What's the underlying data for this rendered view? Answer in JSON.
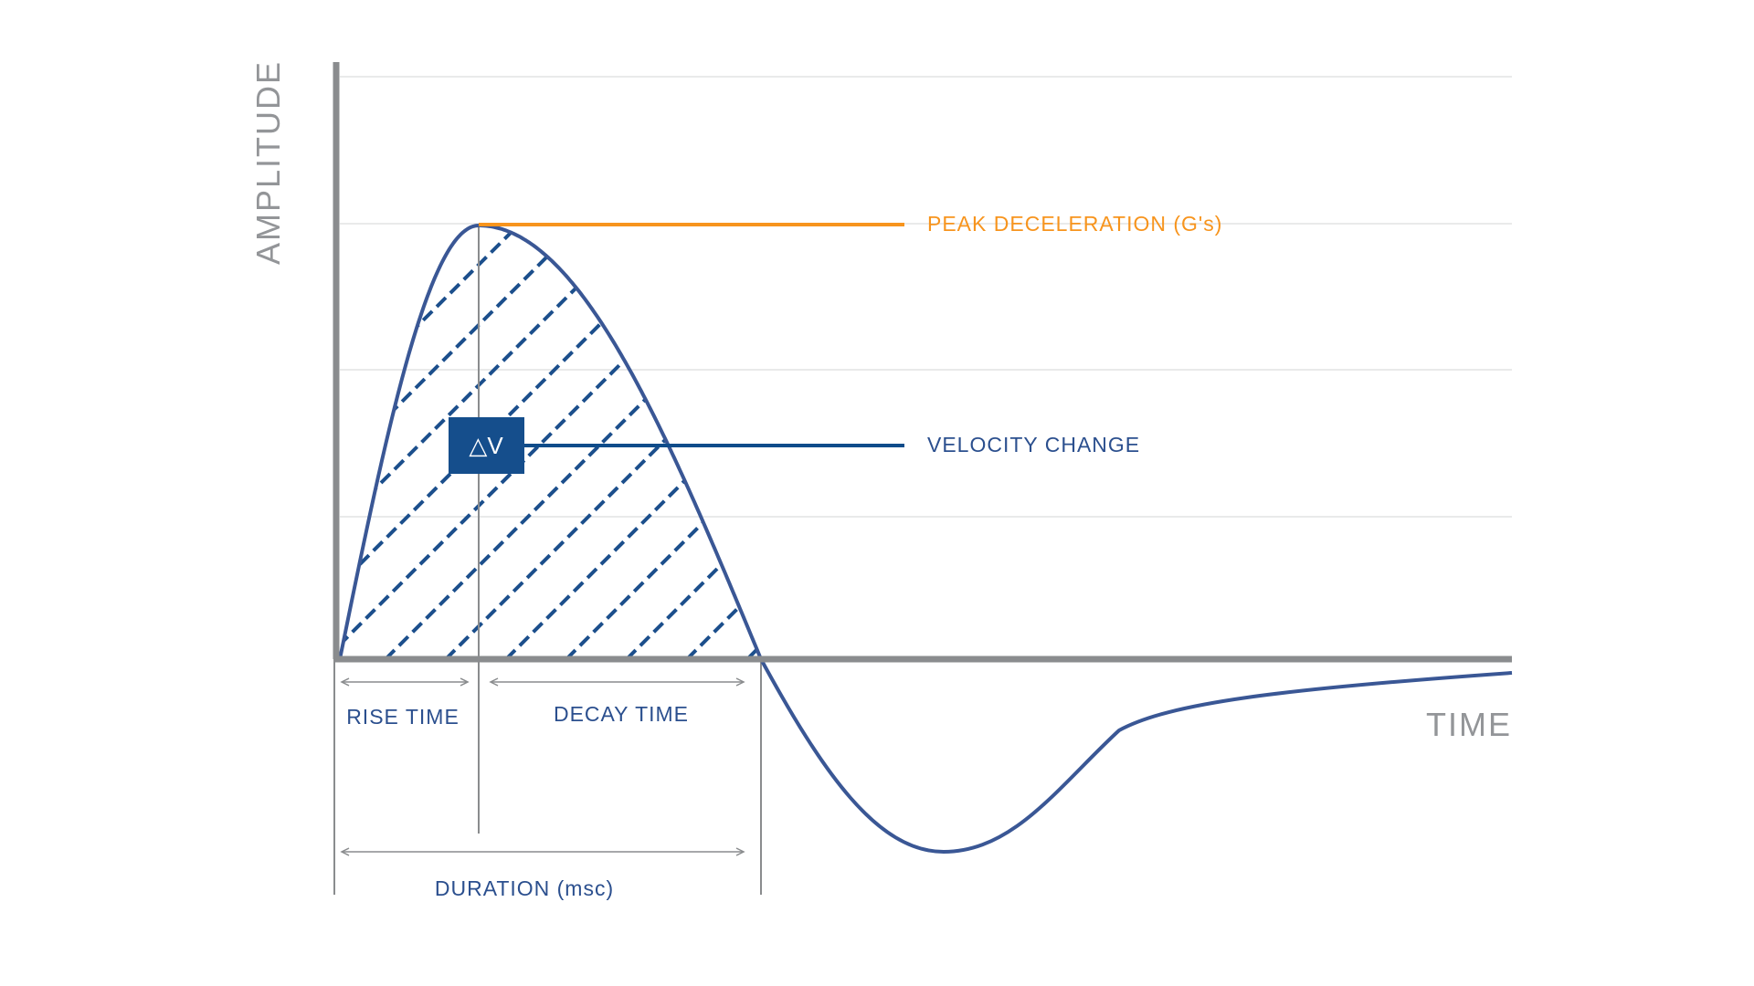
{
  "axes": {
    "y_label": "AMPLITUDE",
    "x_label": "TIME"
  },
  "annotations": {
    "peak": "PEAK DECELERATION (G's)",
    "velocity": "VELOCITY CHANGE",
    "delta_v": "△V",
    "rise": "RISE TIME",
    "decay": "DECAY TIME",
    "duration": "DURATION (msc)"
  },
  "colors": {
    "axis": "#8a8c8e",
    "axis_text": "#939598",
    "grid": "#e2e3e4",
    "curve": "#3a5795",
    "hatch": "#1c4f8c",
    "peak": "#f7941d",
    "velocity": "#0f4c8a",
    "label_blue": "#2b4f8e",
    "marker": "#8a8c8e",
    "box": "#154e8c",
    "box_text": "#ffffff"
  }
}
